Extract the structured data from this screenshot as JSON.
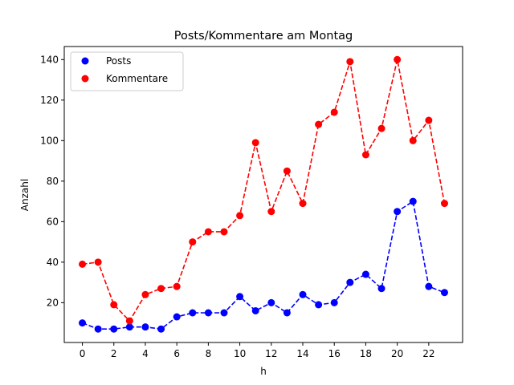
{
  "chart_data": {
    "type": "line",
    "title": "Posts/Kommentare am Montag",
    "xlabel": "h",
    "ylabel": "Anzahl",
    "xlim": [
      -1.15,
      24.15
    ],
    "ylim": [
      0.35,
      146.45
    ],
    "xticks": [
      0,
      2,
      4,
      6,
      8,
      10,
      12,
      14,
      16,
      18,
      20,
      22
    ],
    "yticks": [
      20,
      40,
      60,
      80,
      100,
      120,
      140
    ],
    "grid": false,
    "legend_position": "top-left",
    "x": [
      0,
      1,
      2,
      3,
      4,
      5,
      6,
      7,
      8,
      9,
      10,
      11,
      12,
      13,
      14,
      15,
      16,
      17,
      18,
      19,
      20,
      21,
      22,
      23
    ],
    "series": [
      {
        "name": "Posts",
        "color": "#0000ff",
        "values": [
          10,
          7,
          7,
          8,
          8,
          7,
          13,
          15,
          15,
          15,
          23,
          16,
          20,
          15,
          24,
          19,
          20,
          30,
          34,
          27,
          65,
          70,
          28,
          25
        ]
      },
      {
        "name": "Kommentare",
        "color": "#ff0000",
        "values": [
          39,
          40,
          19,
          11,
          24,
          27,
          28,
          50,
          55,
          55,
          63,
          99,
          65,
          85,
          69,
          108,
          114,
          139,
          93,
          106,
          140,
          100,
          110,
          69
        ]
      }
    ]
  }
}
